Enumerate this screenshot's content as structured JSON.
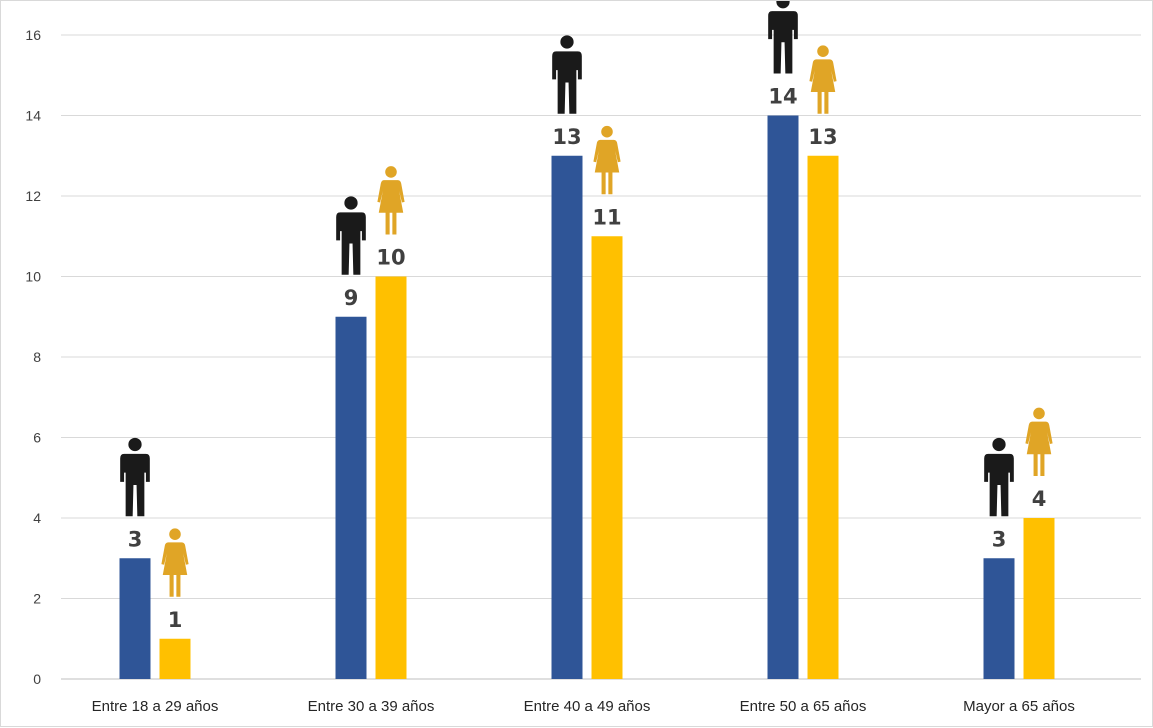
{
  "chart_data": {
    "type": "bar",
    "categories": [
      "Entre 18 a 29 años",
      "Entre 30 a 39 años",
      "Entre 40 a 49 años",
      "Entre 50 a 65 años",
      "Mayor a 65 años"
    ],
    "series": [
      {
        "values": [
          3,
          9,
          13,
          14,
          3
        ],
        "color": "#2f5597",
        "icon": "man-icon",
        "icon_color": "#1a1a1a"
      },
      {
        "values": [
          1,
          10,
          11,
          13,
          4
        ],
        "color": "#ffc000",
        "icon": "woman-icon",
        "icon_color": "#e0a526"
      }
    ],
    "title": "",
    "xlabel": "",
    "ylabel": "",
    "ylim": [
      0,
      16
    ],
    "yticks": [
      0,
      2,
      4,
      6,
      8,
      10,
      12,
      14,
      16
    ],
    "grid": true,
    "legend": "none"
  }
}
